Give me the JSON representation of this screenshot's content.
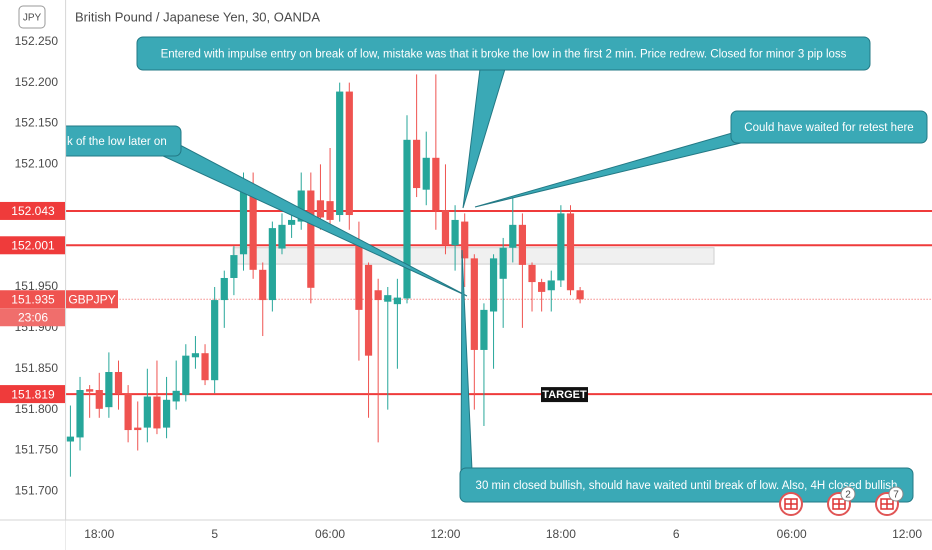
{
  "chart_data": {
    "type": "candlestick",
    "title": "British Pound / Japanese Yen, 30, OANDA",
    "badge": "JPY",
    "up_color": "#26a69a",
    "down_color": "#ef5350",
    "grid": false,
    "ylim": [
      151.665,
      152.301
    ],
    "yticks": [
      {
        "value": 152.25,
        "label": "152.250"
      },
      {
        "value": 152.2,
        "label": "152.200"
      },
      {
        "value": 152.15,
        "label": "152.150"
      },
      {
        "value": 152.1,
        "label": "152.100"
      },
      {
        "value": 151.95,
        "label": "151.950"
      },
      {
        "value": 151.9,
        "label": "151.900"
      },
      {
        "value": 151.85,
        "label": "151.850"
      },
      {
        "value": 151.8,
        "label": "151.800"
      },
      {
        "value": 151.75,
        "label": "151.750"
      },
      {
        "value": 151.7,
        "label": "151.700"
      }
    ],
    "categories": [
      null,
      null,
      null,
      "18:00",
      null,
      null,
      null,
      null,
      null,
      null,
      null,
      null,
      null,
      null,
      null,
      "5",
      null,
      null,
      null,
      null,
      null,
      null,
      null,
      null,
      null,
      null,
      null,
      "06:00",
      null,
      null,
      null,
      null,
      null,
      null,
      null,
      null,
      null,
      null,
      null,
      "12:00",
      null,
      null,
      null,
      null,
      null,
      null,
      null,
      null,
      null,
      null,
      null,
      "18:00",
      null,
      null,
      null,
      null,
      null,
      null,
      null,
      null,
      null,
      null,
      null,
      "6",
      null,
      null,
      null,
      null,
      null,
      null,
      null,
      null,
      null,
      null,
      null,
      "06:00",
      null,
      null,
      null,
      null,
      null,
      null,
      null,
      null,
      null,
      null,
      null,
      "12:00",
      null,
      null
    ],
    "open": [
      151.761,
      151.766,
      151.825,
      151.824,
      151.803,
      151.846,
      151.82,
      151.778,
      151.778,
      151.816,
      151.778,
      151.81,
      151.818,
      151.864,
      151.869,
      151.836,
      151.934,
      151.961,
      151.99,
      152.071,
      151.971,
      151.934,
      151.997,
      152.026,
      152.03,
      152.068,
      152.056,
      152.055,
      152.038,
      152.189,
      152.007,
      151.977,
      151.946,
      151.932,
      151.929,
      151.936,
      152.13,
      152.069,
      152.108,
      152.044,
      152.001,
      152.03,
      151.985,
      151.873,
      151.92,
      151.96,
      151.998,
      152.026,
      151.977,
      151.956,
      151.946,
      151.958,
      152.04,
      151.946,
      null,
      null,
      null,
      null,
      null,
      null,
      null,
      null,
      null,
      null,
      null,
      null,
      null,
      null,
      null,
      null,
      null,
      null,
      null,
      null,
      null,
      null,
      null,
      null,
      null,
      null,
      null,
      null,
      null,
      null,
      null,
      null,
      null,
      null,
      null,
      null
    ],
    "high": [
      151.805,
      151.84,
      151.83,
      151.845,
      151.87,
      151.86,
      151.83,
      151.81,
      151.85,
      151.86,
      151.84,
      151.86,
      151.88,
      151.89,
      151.88,
      151.95,
      151.97,
      152.0,
      152.09,
      152.09,
      151.98,
      152.03,
      152.04,
      152.05,
      152.09,
      152.09,
      152.1,
      152.12,
      152.2,
      152.2,
      152.03,
      151.98,
      151.96,
      151.95,
      151.96,
      152.16,
      152.21,
      152.14,
      152.21,
      152.1,
      152.05,
      152.04,
      151.99,
      151.93,
      151.99,
      152.01,
      152.06,
      152.04,
      151.98,
      151.96,
      151.97,
      152.05,
      152.05,
      151.95,
      null,
      null,
      null,
      null,
      null,
      null,
      null,
      null,
      null,
      null,
      null,
      null,
      null,
      null,
      null,
      null,
      null,
      null,
      null,
      null,
      null,
      null,
      null,
      null,
      null,
      null,
      null,
      null,
      null,
      null,
      null,
      null,
      null,
      null,
      null,
      null
    ],
    "low": [
      151.718,
      151.75,
      151.79,
      151.79,
      151.79,
      151.8,
      151.76,
      151.75,
      151.76,
      151.77,
      151.765,
      151.8,
      151.81,
      151.85,
      151.83,
      151.82,
      151.9,
      151.94,
      151.97,
      151.96,
      151.89,
      151.92,
      151.99,
      152.01,
      152.02,
      151.93,
      152.02,
      152.02,
      152.03,
      152.02,
      151.86,
      151.79,
      151.76,
      151.8,
      151.85,
      151.93,
      152.06,
      152.05,
      152.02,
      151.99,
      151.97,
      151.95,
      151.8,
      151.78,
      151.85,
      151.9,
      151.98,
      151.9,
      151.92,
      151.92,
      151.92,
      151.95,
      151.94,
      151.93,
      null,
      null,
      null,
      null,
      null,
      null,
      null,
      null,
      null,
      null,
      null,
      null,
      null,
      null,
      null,
      null,
      null,
      null,
      null,
      null,
      null,
      null,
      null,
      null,
      null,
      null,
      null,
      null,
      null,
      null,
      null,
      null,
      null,
      null,
      null,
      null
    ],
    "close": [
      151.767,
      151.824,
      151.822,
      151.801,
      151.846,
      151.82,
      151.775,
      151.775,
      151.816,
      151.777,
      151.812,
      151.823,
      151.866,
      151.869,
      151.836,
      151.934,
      151.961,
      151.989,
      152.071,
      151.971,
      151.934,
      152.022,
      152.026,
      152.032,
      152.068,
      151.949,
      152.035,
      152.032,
      152.189,
      152.038,
      151.922,
      151.866,
      151.934,
      151.94,
      151.937,
      152.13,
      152.071,
      152.108,
      152.044,
      152.001,
      152.032,
      151.985,
      151.873,
      151.922,
      151.985,
      151.998,
      152.026,
      151.977,
      151.956,
      151.944,
      151.958,
      152.04,
      151.946,
      151.935,
      null,
      null,
      null,
      null,
      null,
      null,
      null,
      null,
      null,
      null,
      null,
      null,
      null,
      null,
      null,
      null,
      null,
      null,
      null,
      null,
      null,
      null,
      null,
      null,
      null,
      null,
      null,
      null,
      null,
      null,
      null,
      null,
      null,
      null,
      null,
      null
    ],
    "price_lines": [
      152.043,
      152.001,
      151.819
    ],
    "line_color": "#ef3b3b",
    "zone_range": [
      151.978,
      151.998
    ],
    "last_price": {
      "value": 151.935,
      "symbol": "GBPJPY",
      "countdown": "23:06"
    },
    "target_label": "TARGET",
    "annotations": [
      "Entered with impulse entry on break of low, mistake was that it broke the low in the first 2 min. Price redrew. Closed for minor 3 pip loss",
      "Could have waited for retest here",
      "k of the low later on",
      "30 min closed bullish, should have waited until break of low. Also, 4H closed bullish"
    ],
    "event_counts": [
      2,
      7
    ]
  }
}
